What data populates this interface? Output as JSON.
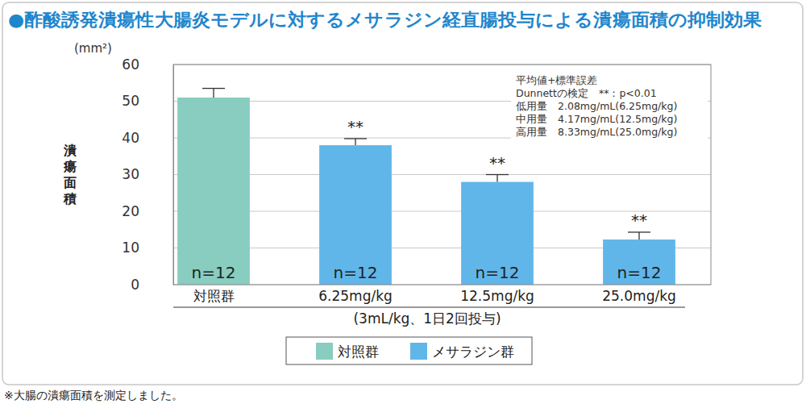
{
  "chart_data": {
    "type": "bar",
    "title": "●酢酸誘発潰瘍性大腸炎モデルに対するメサラジン経直腸投与による潰瘍面積の抑制効果",
    "y_label": "潰瘍面積",
    "y_unit": "(mm²)",
    "x_label": "(3mL/kg、1日2回投与)",
    "footnote": "※大腸の潰瘍面積を測定しました。",
    "notes": [
      "平均値+標準誤差",
      "Dunnettの検定　**：p<0.01",
      "低用量　2.08mg/mL(6.25mg/kg)",
      "中用量　4.17mg/mL(12.5mg/kg)",
      "高用量　8.33mg/mL(25.0mg/kg)"
    ],
    "categories": [
      "対照群",
      "6.25mg/kg",
      "12.5mg/kg",
      "25.0mg/kg"
    ],
    "series": [
      {
        "name": "対照群",
        "color": "#88cdbf",
        "values": [
          51,
          null,
          null,
          null
        ],
        "errors": [
          2.5,
          null,
          null,
          null
        ],
        "n_labels": [
          "n=12",
          null,
          null,
          null
        ],
        "significance": [
          null,
          null,
          null,
          null
        ]
      },
      {
        "name": "メサラジン群",
        "color": "#60b6e9",
        "values": [
          null,
          38,
          28,
          12.3
        ],
        "errors": [
          null,
          1.8,
          2,
          2
        ],
        "n_labels": [
          null,
          "n=12",
          "n=12",
          "n=12"
        ],
        "significance": [
          null,
          "**",
          "**",
          "**"
        ]
      }
    ],
    "ylim": [
      0,
      60
    ],
    "yticks": [
      0,
      10,
      20,
      30,
      40,
      50,
      60
    ],
    "grid": true,
    "legend": "bottom"
  }
}
